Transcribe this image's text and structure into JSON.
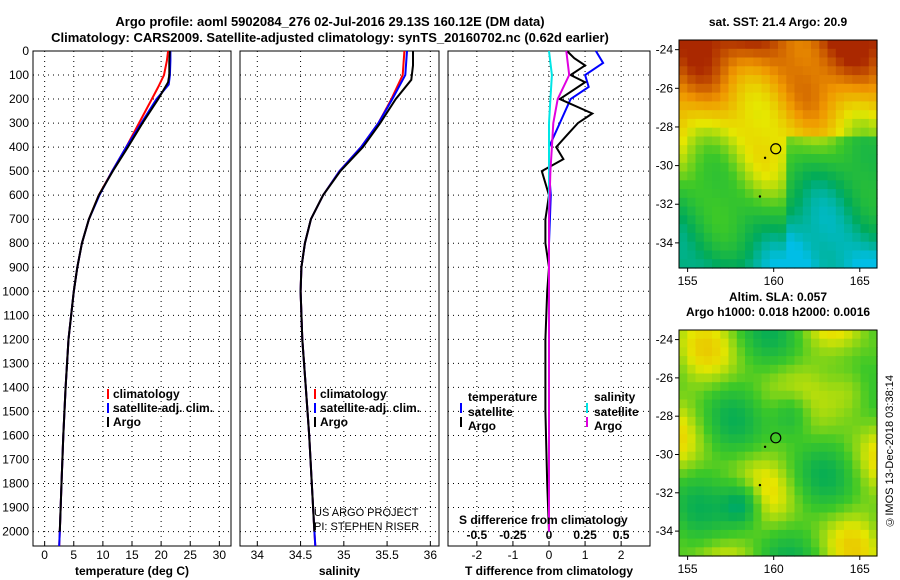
{
  "header": {
    "title_line1": "Argo profile: aoml 5902084_276 02-Jul-2016 29.13S 160.12E (DM data)",
    "title_line2": "Climatology: CARS2009. Satellite-adjusted climatology: synTS_20160702.nc (0.62d earlier)"
  },
  "maps": {
    "sst_title": "sat. SST: 21.4 Argo: 20.9",
    "sla_title_line1": "Altim. SLA: 0.057",
    "sla_title_line2": "Argo h1000: 0.018 h2000: 0.0016",
    "lat_ticks": [
      "-24",
      "-26",
      "-28",
      "-30",
      "-32",
      "-34"
    ],
    "lon_ticks": [
      "155",
      "160",
      "165"
    ],
    "float_lat": -29.13,
    "float_lon": 160.12
  },
  "footer": {
    "stamp": "©IMOS 13-Dec-2018 03:38:14",
    "project_line1": "US ARGO PROJECT",
    "project_line2": "PI: STEPHEN RISER"
  },
  "colors": {
    "climatology": "#ff0000",
    "satellite": "#0000ff",
    "argo": "#000000",
    "sat_s": "#00e5e5",
    "argo_s": "#e000e0"
  },
  "chart_data": [
    {
      "type": "line",
      "name": "temperature",
      "xlabel": "temperature (deg C)",
      "ylabel": "",
      "xlim": [
        -2,
        32
      ],
      "ylim": [
        2060,
        0
      ],
      "xticks": [
        "0",
        "5",
        "10",
        "15",
        "20",
        "25",
        "30"
      ],
      "yticks": [
        "0",
        "100",
        "200",
        "300",
        "400",
        "500",
        "600",
        "700",
        "800",
        "900",
        "1000",
        "1100",
        "1200",
        "1300",
        "1400",
        "1500",
        "1600",
        "1700",
        "1800",
        "1900",
        "2000"
      ],
      "legend": [
        "climatology",
        "satellite-adj. clim.",
        "Argo"
      ],
      "series": [
        {
          "name": "climatology",
          "depth": [
            0,
            40,
            100,
            150,
            200,
            300,
            400,
            500,
            600,
            700,
            800,
            900,
            1000,
            1200,
            1400,
            1600,
            1800,
            2000,
            2060
          ],
          "values": [
            21.2,
            21.0,
            20.5,
            19.5,
            18.4,
            16.2,
            14.0,
            11.6,
            9.3,
            7.6,
            6.4,
            5.6,
            5.0,
            4.1,
            3.6,
            3.2,
            2.9,
            2.6,
            2.5
          ]
        },
        {
          "name": "satellite-adj. clim.",
          "depth": [
            0,
            40,
            100,
            140,
            200,
            300,
            400,
            500,
            600,
            700,
            800,
            900,
            1000,
            1200,
            1400,
            1600,
            1800,
            2000,
            2060
          ],
          "values": [
            21.6,
            21.6,
            21.5,
            21.3,
            19.2,
            16.6,
            14.0,
            11.6,
            9.4,
            7.6,
            6.4,
            5.6,
            5.0,
            4.1,
            3.6,
            3.2,
            2.9,
            2.6,
            2.5
          ]
        },
        {
          "name": "Argo",
          "depth": [
            0,
            40,
            100,
            130,
            200,
            300,
            400,
            500,
            600,
            700,
            800,
            900,
            1000,
            1200,
            1400,
            1600,
            1800,
            2000
          ],
          "values": [
            21.5,
            21.4,
            21.4,
            21.2,
            19.5,
            16.8,
            14.3,
            11.7,
            9.3,
            7.6,
            6.4,
            5.6,
            5.0,
            4.1,
            3.6,
            3.2,
            2.9,
            2.6
          ]
        }
      ]
    },
    {
      "type": "line",
      "name": "salinity",
      "xlabel": "salinity",
      "xlim": [
        33.8,
        36.1
      ],
      "ylim": [
        2060,
        0
      ],
      "xticks": [
        "34",
        "34.5",
        "35",
        "35.5",
        "36"
      ],
      "legend": [
        "climatology",
        "satellite-adj. clim.",
        "Argo"
      ],
      "series": [
        {
          "name": "climatology",
          "depth": [
            0,
            100,
            200,
            300,
            400,
            500,
            600,
            700,
            800,
            900,
            1000,
            1200,
            1400,
            1600,
            1800,
            2000,
            2060
          ],
          "values": [
            35.7,
            35.68,
            35.55,
            35.4,
            35.2,
            34.95,
            34.76,
            34.62,
            34.55,
            34.51,
            34.5,
            34.52,
            34.56,
            34.6,
            34.63,
            34.66,
            34.67
          ]
        },
        {
          "name": "satellite-adj. clim.",
          "depth": [
            0,
            100,
            200,
            300,
            400,
            500,
            600,
            700,
            800,
            900,
            1000,
            1200,
            1400,
            1600,
            1800,
            2000,
            2060
          ],
          "values": [
            35.73,
            35.71,
            35.56,
            35.4,
            35.2,
            34.95,
            34.76,
            34.62,
            34.55,
            34.51,
            34.5,
            34.52,
            34.56,
            34.6,
            34.63,
            34.66,
            34.67
          ]
        },
        {
          "name": "Argo",
          "depth": [
            0,
            60,
            120,
            200,
            300,
            400,
            500,
            600,
            700,
            800,
            900,
            1000,
            1200,
            1400,
            1600,
            1800,
            2000
          ],
          "values": [
            35.8,
            35.8,
            35.78,
            35.6,
            35.42,
            35.22,
            34.96,
            34.76,
            34.62,
            34.55,
            34.51,
            34.5,
            34.52,
            34.56,
            34.6,
            34.63,
            34.66
          ]
        }
      ]
    },
    {
      "type": "line",
      "name": "difference",
      "xlabel": "T difference from climatology",
      "xlabel2": "S difference from climatology",
      "xlim": [
        -2.8,
        2.8
      ],
      "ylim": [
        2060,
        0
      ],
      "xticks": [
        "-2",
        "-1",
        "0",
        "1",
        "2"
      ],
      "xticks2": [
        "-0.5",
        "-0.25",
        "0",
        "0.25",
        "0.5"
      ],
      "legend_temperature": {
        "title": "temperature",
        "items": [
          "satellite",
          "Argo"
        ]
      },
      "legend_salinity": {
        "title": "salinity",
        "items": [
          "satellite",
          "Argo"
        ]
      },
      "series": [
        {
          "name": "T satellite",
          "depth": [
            0,
            50,
            100,
            150,
            200,
            300,
            400,
            500,
            600,
            800,
            1000,
            1500,
            2000
          ],
          "values": [
            1.3,
            1.5,
            1.0,
            1.1,
            0.6,
            0.3,
            0.0,
            0.0,
            0.05,
            0.0,
            0.0,
            0.0,
            0.0
          ]
        },
        {
          "name": "T Argo",
          "depth": [
            0,
            30,
            60,
            100,
            130,
            200,
            260,
            300,
            350,
            400,
            450,
            500,
            550,
            600,
            700,
            800,
            900,
            1000,
            1200,
            1500,
            1800,
            2000
          ],
          "values": [
            0.5,
            0.7,
            1.0,
            0.6,
            1.0,
            0.3,
            1.2,
            0.8,
            0.5,
            0.2,
            0.4,
            -0.2,
            -0.1,
            0.0,
            -0.1,
            -0.1,
            0.0,
            -0.05,
            -0.1,
            -0.1,
            -0.05,
            0.0
          ]
        },
        {
          "name": "S satellite",
          "depth": [
            0,
            100,
            200,
            300,
            400,
            500,
            700,
            1000,
            1500,
            2000
          ],
          "values": [
            0.0,
            0.02,
            0.01,
            0.0,
            0.0,
            0.0,
            0.0,
            0.0,
            0.0,
            0.0
          ]
        },
        {
          "name": "S Argo",
          "depth": [
            0,
            100,
            200,
            300,
            400,
            500,
            700,
            1000,
            1500,
            2000
          ],
          "values": [
            0.12,
            0.14,
            0.06,
            0.03,
            0.02,
            0.01,
            0.0,
            0.0,
            0.0,
            0.0
          ]
        }
      ]
    }
  ]
}
